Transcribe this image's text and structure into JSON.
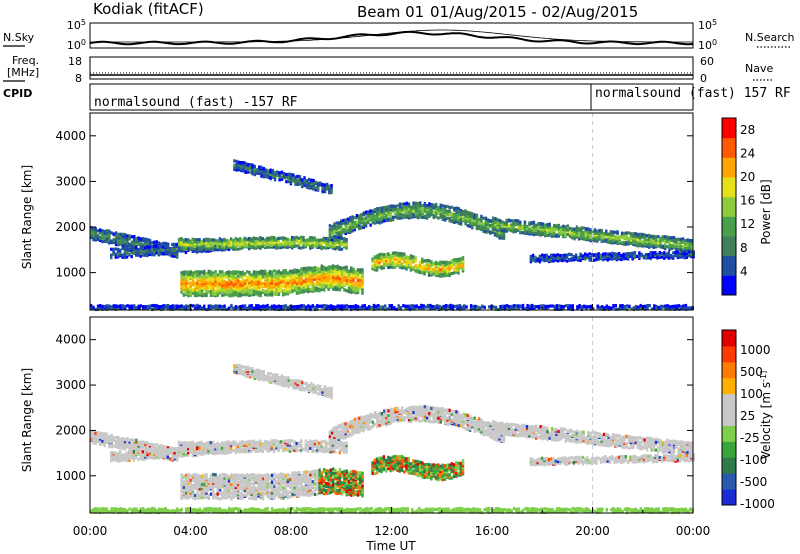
{
  "header": {
    "station": "Kodiak (fitACF)",
    "beam_label": "Beam 01",
    "dates": "01/Aug/2015 - 02/Aug/2015"
  },
  "top_panels": {
    "nsky_label": "N.Sky",
    "nsearch_label": "N.Search",
    "noise_ticks": [
      "10^5",
      "10^0"
    ],
    "freq_label": "Freq.",
    "freq_unit": "[MHz]",
    "freq_ticks": [
      "18",
      "8"
    ],
    "nave_label": "Nave",
    "nave_ticks": [
      "60",
      "0"
    ],
    "cpid_label": "CPID",
    "cpid_segments": [
      "normalsound (fast) -157 RF",
      "normalsound (fast) 157 RF"
    ]
  },
  "colors": {
    "power_scale": [
      "#0000ff",
      "#1e4fa3",
      "#3f7f5a",
      "#48a04a",
      "#8ccc3c",
      "#e6e21a",
      "#ffa500",
      "#ff5a00",
      "#ff0000"
    ],
    "velocity_scale": [
      "#1a2cd6",
      "#2a5ab0",
      "#2f7a4a",
      "#3aa63a",
      "#7ed04a",
      "#c8c8c8",
      "#c8c8c8",
      "#ffb000",
      "#ff7a00",
      "#ff3a00",
      "#e00000"
    ]
  },
  "chart_data": [
    {
      "type": "heatmap",
      "title": "",
      "xlabel": "Time UT",
      "ylabel": "Slant Range [km]",
      "x_ticks": [
        "00:00",
        "04:00",
        "08:00",
        "12:00",
        "16:00",
        "20:00",
        "00:00"
      ],
      "x_range_hours": [
        0,
        24
      ],
      "y_range_km": [
        180,
        4500
      ],
      "y_ticks": [
        1000,
        2000,
        3000,
        4000
      ],
      "colorbar_label": "Power [dB]",
      "colorbar_ticks": [
        4,
        8,
        12,
        16,
        20,
        24,
        28
      ],
      "colorbar_range": [
        0,
        30
      ]
    },
    {
      "type": "heatmap",
      "title": "",
      "xlabel": "Time UT",
      "ylabel": "Slant Range [km]",
      "x_ticks": [
        "00:00",
        "04:00",
        "08:00",
        "12:00",
        "16:00",
        "20:00",
        "00:00"
      ],
      "x_range_hours": [
        0,
        24
      ],
      "y_range_km": [
        180,
        4500
      ],
      "y_ticks": [
        1000,
        2000,
        3000,
        4000
      ],
      "colorbar_label": "Velocity [m s^-1]",
      "colorbar_ticks": [
        1000,
        500,
        100,
        25,
        -25,
        -100,
        -500,
        -1000
      ]
    }
  ]
}
